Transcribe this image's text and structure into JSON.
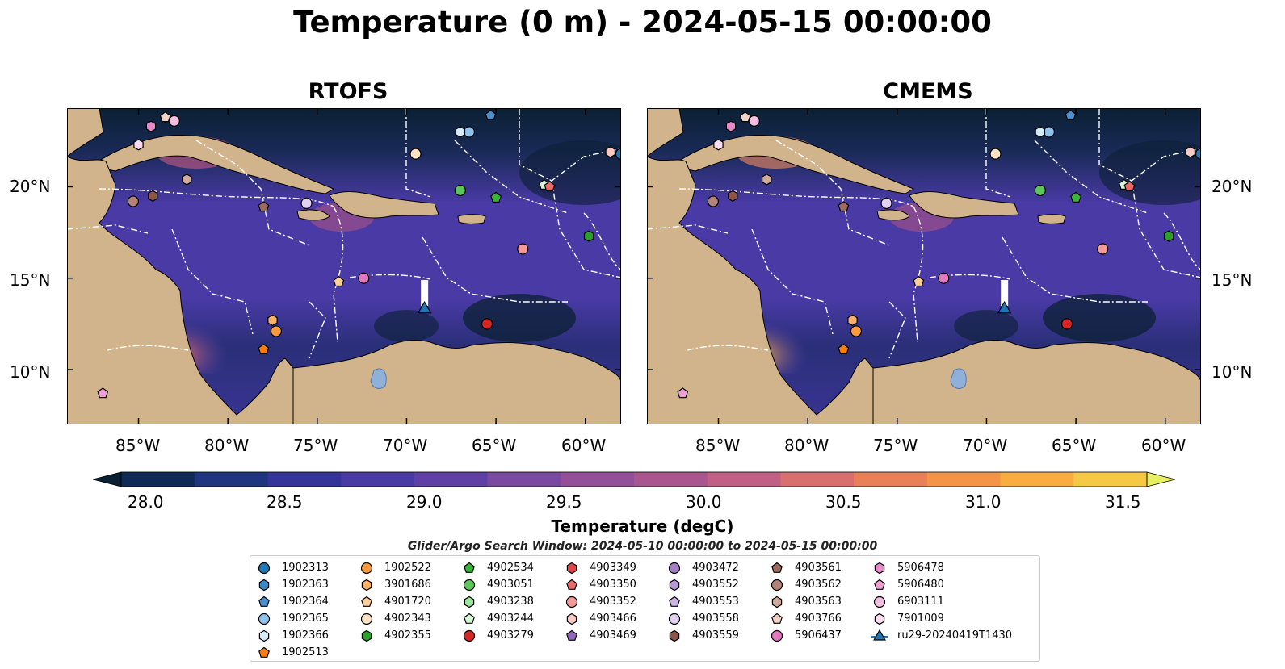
{
  "title": "Temperature (0 m) - 2024-05-15 00:00:00",
  "panels": [
    {
      "title": "RTOFS"
    },
    {
      "title": "CMEMS"
    }
  ],
  "axes": {
    "lat_labels": [
      "20°N",
      "15°N",
      "10°N"
    ],
    "lon_labels": [
      "85°W",
      "80°W",
      "75°W",
      "70°W",
      "65°W",
      "60°W"
    ]
  },
  "colorbar": {
    "label": "Temperature (degC)",
    "ticks": [
      "28.0",
      "28.5",
      "29.0",
      "29.5",
      "30.0",
      "30.5",
      "31.0",
      "31.5"
    ],
    "colors": [
      "#0b2033",
      "#0f2a55",
      "#1f3580",
      "#34349a",
      "#4a3aa6",
      "#6140a6",
      "#7a4aa0",
      "#934f98",
      "#a9558e",
      "#c06084",
      "#d8706f",
      "#ea8058",
      "#f49448",
      "#f8ad3e",
      "#f5c944",
      "#e8ef60"
    ]
  },
  "search_window": "Glider/Argo Search Window: 2024-05-10 00:00:00 to 2024-05-15 00:00:00",
  "chart_data": {
    "type": "heatmap",
    "variable": "Temperature (0 m)",
    "units": "degC",
    "clim": [
      28.0,
      31.5
    ],
    "lon_range": [
      -89,
      -58
    ],
    "lat_range": [
      7,
      24.3
    ],
    "panels": [
      "RTOFS",
      "CMEMS"
    ],
    "floats": [
      {
        "id": "1902313",
        "lon": -58.0,
        "lat": 21.8
      },
      {
        "id": "1902364",
        "lon": -65.3,
        "lat": 23.9
      },
      {
        "id": "1902365",
        "lon": -66.5,
        "lat": 23.0
      },
      {
        "id": "1902366",
        "lon": -67.0,
        "lat": 23.0
      },
      {
        "id": "1902513",
        "lon": -78.0,
        "lat": 11.1
      },
      {
        "id": "1902522",
        "lon": -77.3,
        "lat": 12.1
      },
      {
        "id": "3901686",
        "lon": -77.5,
        "lat": 12.7
      },
      {
        "id": "4901720",
        "lon": -73.8,
        "lat": 14.8
      },
      {
        "id": "4902343",
        "lon": -69.5,
        "lat": 21.8
      },
      {
        "id": "4902355",
        "lon": -59.8,
        "lat": 17.3
      },
      {
        "id": "4902534",
        "lon": -65.0,
        "lat": 19.4
      },
      {
        "id": "4903051",
        "lon": -67.0,
        "lat": 19.8
      },
      {
        "id": "4903244",
        "lon": -62.3,
        "lat": 20.1
      },
      {
        "id": "4903279",
        "lon": -65.5,
        "lat": 12.5
      },
      {
        "id": "4903350",
        "lon": -62.0,
        "lat": 20.0
      },
      {
        "id": "4903352",
        "lon": -63.5,
        "lat": 16.6
      },
      {
        "id": "4903466",
        "lon": -58.6,
        "lat": 21.9
      },
      {
        "id": "4903558",
        "lon": -75.6,
        "lat": 19.1
      },
      {
        "id": "4903559",
        "lon": -84.2,
        "lat": 19.5
      },
      {
        "id": "4903561",
        "lon": -78.0,
        "lat": 18.9
      },
      {
        "id": "4903562",
        "lon": -85.3,
        "lat": 19.2
      },
      {
        "id": "4903563",
        "lon": -82.3,
        "lat": 20.4
      },
      {
        "id": "4903766",
        "lon": -83.5,
        "lat": 23.8
      },
      {
        "id": "5906437",
        "lon": -72.4,
        "lat": 15.0
      },
      {
        "id": "5906478",
        "lon": -84.3,
        "lat": 23.3
      },
      {
        "id": "5906480",
        "lon": -87.0,
        "lat": 8.7
      },
      {
        "id": "6903111",
        "lon": -83.0,
        "lat": 23.6
      },
      {
        "id": "7901009",
        "lon": -85.0,
        "lat": 22.3
      },
      {
        "id": "ru29-20240419T1430",
        "lon": -69.0,
        "lat": 13.3
      }
    ]
  },
  "legend": {
    "columns": [
      [
        {
          "label": "1902313",
          "marker": "circle",
          "color": "#1f77b4"
        },
        {
          "label": "1902363",
          "marker": "hexagon",
          "color": "#3a8bc6"
        },
        {
          "label": "1902364",
          "marker": "pentagon",
          "color": "#4c8fce"
        },
        {
          "label": "1902365",
          "marker": "circle",
          "color": "#8fc3ec"
        },
        {
          "label": "1902366",
          "marker": "hexagon",
          "color": "#d7ecfb"
        },
        {
          "label": "1902513",
          "marker": "pentagon",
          "color": "#ff7f0e"
        }
      ],
      [
        {
          "label": "1902522",
          "marker": "circle",
          "color": "#ff9a3c"
        },
        {
          "label": "3901686",
          "marker": "hexagon",
          "color": "#ffb068"
        },
        {
          "label": "4901720",
          "marker": "pentagon",
          "color": "#ffcf9a"
        },
        {
          "label": "4902343",
          "marker": "circle",
          "color": "#ffe2c4"
        },
        {
          "label": "4902355",
          "marker": "hexagon",
          "color": "#2ca02c"
        }
      ],
      [
        {
          "label": "4902534",
          "marker": "pentagon",
          "color": "#3cb43c"
        },
        {
          "label": "4903051",
          "marker": "circle",
          "color": "#5cc75c"
        },
        {
          "label": "4903238",
          "marker": "hexagon",
          "color": "#9ee39e"
        },
        {
          "label": "4903244",
          "marker": "pentagon",
          "color": "#d6f7d6"
        },
        {
          "label": "4903279",
          "marker": "circle",
          "color": "#d62728"
        }
      ],
      [
        {
          "label": "4903349",
          "marker": "hexagon",
          "color": "#e0474a"
        },
        {
          "label": "4903350",
          "marker": "pentagon",
          "color": "#ea6a6c"
        },
        {
          "label": "4903352",
          "marker": "circle",
          "color": "#f49a98"
        },
        {
          "label": "4903466",
          "marker": "hexagon",
          "color": "#fbc9c3"
        },
        {
          "label": "4903469",
          "marker": "pentagon",
          "color": "#9467bd"
        }
      ],
      [
        {
          "label": "4903472",
          "marker": "circle",
          "color": "#a47fc8"
        },
        {
          "label": "4903552",
          "marker": "hexagon",
          "color": "#b998d6"
        },
        {
          "label": "4903553",
          "marker": "pentagon",
          "color": "#ccb5e3"
        },
        {
          "label": "4903558",
          "marker": "circle",
          "color": "#e1d0f0"
        },
        {
          "label": "4903559",
          "marker": "hexagon",
          "color": "#8c564b"
        }
      ],
      [
        {
          "label": "4903561",
          "marker": "pentagon",
          "color": "#9d6a5f"
        },
        {
          "label": "4903562",
          "marker": "circle",
          "color": "#b48479"
        },
        {
          "label": "4903563",
          "marker": "hexagon",
          "color": "#d2ab9f"
        },
        {
          "label": "4903766",
          "marker": "pentagon",
          "color": "#f1d3c6"
        },
        {
          "label": "5906437",
          "marker": "circle",
          "color": "#e377c2"
        }
      ],
      [
        {
          "label": "5906478",
          "marker": "hexagon",
          "color": "#e88bcb"
        },
        {
          "label": "5906480",
          "marker": "pentagon",
          "color": "#ee9fd4"
        },
        {
          "label": "6903111",
          "marker": "circle",
          "color": "#f4bde2"
        },
        {
          "label": "7901009",
          "marker": "hexagon",
          "color": "#f9dcef"
        },
        {
          "label": "ru29-20240419T1430",
          "marker": "triangle-line",
          "color": "#1f77b4"
        }
      ]
    ]
  }
}
